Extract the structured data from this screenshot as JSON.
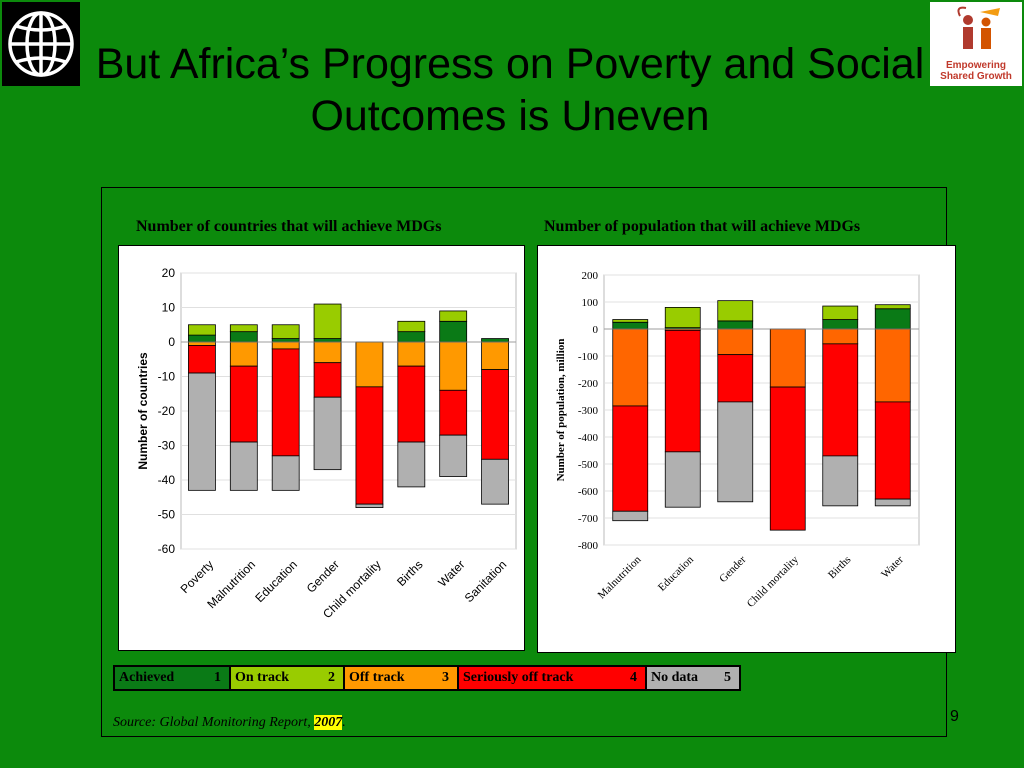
{
  "title": "But Africa’s Progress on Poverty and Social Outcomes is Uneven",
  "logos": {
    "left": "world-bank-globe-logo",
    "right_text_1": "Empowering",
    "right_text_2": "Shared Growth"
  },
  "legend": [
    {
      "label": "Achieved",
      "num": "1",
      "color": "#0a7a16"
    },
    {
      "label": "On track",
      "num": "2",
      "color": "#99cc00"
    },
    {
      "label": "Off track",
      "num": "3",
      "color": "#ff9900"
    },
    {
      "label": "Seriously off track",
      "num": "4",
      "color": "#ff0000"
    },
    {
      "label": "No data",
      "num": "5",
      "color": "#b0b0b0"
    }
  ],
  "source": {
    "prefix": "Source",
    "text": ": Global Monitoring Report, ",
    "year": "2007",
    "suffix": "."
  },
  "page_number": "9",
  "chart_data": [
    {
      "type": "bar",
      "stacked": true,
      "title": "Number of countries that will achieve MDGs",
      "ylabel": "Number of countries",
      "ylim": [
        -60,
        20
      ],
      "yticks": [
        20,
        10,
        0,
        -10,
        -20,
        -30,
        -40,
        -50,
        -60
      ],
      "categories": [
        "Poverty",
        "Malnutrition",
        "Education",
        "Gender",
        "Child mortality",
        "Births",
        "Water",
        "Sanitation"
      ],
      "series": [
        {
          "name": "Achieved",
          "color": "#0a7a16",
          "values": [
            2,
            3,
            1,
            1,
            0,
            3,
            6,
            1
          ]
        },
        {
          "name": "On track",
          "color": "#99cc00",
          "values": [
            3,
            2,
            4,
            10,
            0,
            3,
            3,
            0
          ]
        },
        {
          "name": "Off track",
          "color": "#ff9900",
          "values": [
            -1,
            -7,
            -2,
            -6,
            -13,
            -7,
            -14,
            -8
          ]
        },
        {
          "name": "Seriously off track",
          "color": "#ff0000",
          "values": [
            -8,
            -22,
            -31,
            -10,
            -34,
            -22,
            -13,
            -26
          ]
        },
        {
          "name": "No data",
          "color": "#b0b0b0",
          "values": [
            -34,
            -14,
            -10,
            -21,
            -1,
            -13,
            -12,
            -13
          ]
        }
      ]
    },
    {
      "type": "bar",
      "stacked": true,
      "title": "Number of population that will achieve MDGs",
      "ylabel": "Number of population, million",
      "ylim": [
        -800,
        200
      ],
      "yticks": [
        200,
        100,
        0,
        -100,
        -200,
        -300,
        -400,
        -500,
        -600,
        -700,
        -800
      ],
      "categories": [
        "Malnutrition",
        "Education",
        "Gender",
        "Child mortality",
        "Births",
        "Water"
      ],
      "series": [
        {
          "name": "Achieved",
          "color": "#0a7a16",
          "values": [
            25,
            5,
            30,
            0,
            35,
            75
          ]
        },
        {
          "name": "On track",
          "color": "#99cc00",
          "values": [
            10,
            75,
            75,
            0,
            50,
            15
          ]
        },
        {
          "name": "Off track",
          "color": "#ff6600",
          "values": [
            -285,
            -5,
            -95,
            -215,
            -55,
            -270
          ]
        },
        {
          "name": "Seriously off track",
          "color": "#ff0000",
          "values": [
            -390,
            -450,
            -175,
            -530,
            -415,
            -360
          ]
        },
        {
          "name": "No data",
          "color": "#b0b0b0",
          "values": [
            -35,
            -205,
            -370,
            0,
            -185,
            -25
          ]
        }
      ]
    }
  ]
}
